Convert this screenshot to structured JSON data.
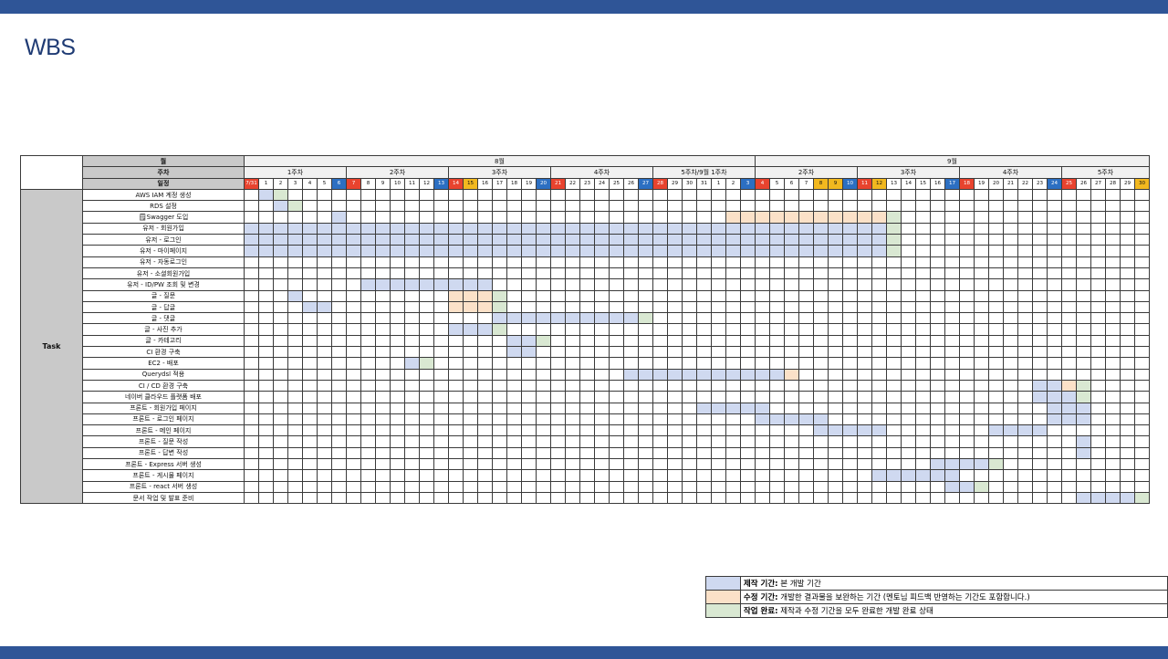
{
  "title": "WBS",
  "colors": {
    "band": "#2f5597",
    "dev": "#cfd9f0",
    "fix": "#fbe1c8",
    "done": "#d9e8d2",
    "sunday": "#e8432e",
    "saturday": "#2c6fc2",
    "holiday": "#f2b81f",
    "header": "#c9c9c9"
  },
  "header": {
    "month_label": "월",
    "week_label": "주차",
    "day_label": "일정",
    "task_label": "Task"
  },
  "months": [
    {
      "label": "8월",
      "span": 35
    },
    {
      "label": "9월",
      "span": 27
    }
  ],
  "weeks": [
    {
      "label": "1주차",
      "span": 7
    },
    {
      "label": "2주차",
      "span": 7
    },
    {
      "label": "3주차",
      "span": 7
    },
    {
      "label": "4주차",
      "span": 7
    },
    {
      "label": "5주차/9월 1주차",
      "span": 7
    },
    {
      "label": "2주차",
      "span": 7
    },
    {
      "label": "3주차",
      "span": 7
    },
    {
      "label": "4주차",
      "span": 7
    },
    {
      "label": "5주차",
      "span": 6
    }
  ],
  "days": [
    "7/31",
    "1",
    "2",
    "3",
    "4",
    "5",
    "6",
    "7",
    "8",
    "9",
    "10",
    "11",
    "12",
    "13",
    "14",
    "15",
    "16",
    "17",
    "18",
    "19",
    "20",
    "21",
    "22",
    "23",
    "24",
    "25",
    "26",
    "27",
    "28",
    "29",
    "30",
    "31",
    "1",
    "2",
    "3",
    "4",
    "5",
    "6",
    "7",
    "8",
    "9",
    "10",
    "11",
    "12",
    "13",
    "14",
    "15",
    "16",
    "17",
    "18",
    "19",
    "20",
    "21",
    "22",
    "23",
    "24",
    "25",
    "26",
    "27",
    "28",
    "29",
    "30"
  ],
  "day_types": {
    "sun": [
      0,
      7,
      14,
      21,
      28,
      35,
      42,
      49,
      56
    ],
    "sat": [
      6,
      13,
      20,
      27,
      34,
      41,
      48,
      55
    ],
    "hol": [
      15,
      39,
      40,
      43,
      61
    ]
  },
  "tasks": [
    {
      "name": "AWS IAM 계정 생성",
      "bars": [
        [
          1,
          1,
          1
        ],
        [
          2,
          2,
          3
        ]
      ]
    },
    {
      "name": "RDS 설정",
      "bars": [
        [
          2,
          2,
          1
        ],
        [
          3,
          3,
          3
        ]
      ]
    },
    {
      "name": "🗒Swagger 도입",
      "bars": [
        [
          6,
          6,
          1
        ],
        [
          33,
          43,
          2
        ],
        [
          44,
          44,
          3
        ]
      ]
    },
    {
      "name": "유저 - 회원가입",
      "bars": [
        [
          0,
          43,
          1
        ],
        [
          44,
          44,
          3
        ]
      ]
    },
    {
      "name": "유저 - 로그인",
      "bars": [
        [
          0,
          43,
          1
        ],
        [
          44,
          44,
          3
        ]
      ]
    },
    {
      "name": "유저 - 마이페이지",
      "bars": [
        [
          0,
          43,
          1
        ],
        [
          44,
          44,
          3
        ]
      ]
    },
    {
      "name": "유저 - 자동로그인",
      "bars": []
    },
    {
      "name": "유저 - 소셜회원가입",
      "bars": []
    },
    {
      "name": "유저 - ID/PW 조회 및 변경",
      "bars": [
        [
          8,
          16,
          1
        ]
      ]
    },
    {
      "name": "글 - 질문",
      "bars": [
        [
          3,
          3,
          1
        ],
        [
          14,
          16,
          2
        ],
        [
          17,
          17,
          3
        ]
      ]
    },
    {
      "name": "글 - 답글",
      "bars": [
        [
          4,
          5,
          1
        ],
        [
          14,
          16,
          2
        ],
        [
          17,
          17,
          3
        ]
      ]
    },
    {
      "name": "글 - 댓글",
      "bars": [
        [
          17,
          26,
          1
        ],
        [
          27,
          27,
          3
        ]
      ]
    },
    {
      "name": "글 - 사진 추가",
      "bars": [
        [
          14,
          16,
          1
        ],
        [
          17,
          17,
          3
        ]
      ]
    },
    {
      "name": "글 - 카테고리",
      "bars": [
        [
          18,
          19,
          1
        ],
        [
          20,
          20,
          3
        ]
      ]
    },
    {
      "name": "CI 환경 구축",
      "bars": [
        [
          18,
          19,
          1
        ]
      ]
    },
    {
      "name": "EC2 - 배포",
      "bars": [
        [
          11,
          11,
          1
        ],
        [
          12,
          12,
          3
        ]
      ]
    },
    {
      "name": "Querydsl 적용",
      "bars": [
        [
          26,
          36,
          1
        ],
        [
          37,
          37,
          2
        ]
      ]
    },
    {
      "name": "CI / CD 환경 구축",
      "bars": [
        [
          54,
          55,
          1
        ],
        [
          56,
          56,
          2
        ],
        [
          57,
          57,
          3
        ]
      ]
    },
    {
      "name": "네이버 클라우드 플랫폼 배포",
      "bars": [
        [
          54,
          55,
          1
        ],
        [
          56,
          56,
          1
        ],
        [
          57,
          57,
          3
        ]
      ]
    },
    {
      "name": "프론트 - 회원가입 페이지",
      "bars": [
        [
          31,
          35,
          1
        ],
        [
          55,
          57,
          1
        ]
      ]
    },
    {
      "name": "프론트 - 로그인 페이지",
      "bars": [
        [
          35,
          39,
          1
        ],
        [
          55,
          57,
          1
        ]
      ]
    },
    {
      "name": "프론트 - 메인 페이지",
      "bars": [
        [
          39,
          43,
          1
        ],
        [
          51,
          54,
          1
        ]
      ]
    },
    {
      "name": "프론트 - 질문 작성",
      "bars": [
        [
          57,
          57,
          1
        ]
      ]
    },
    {
      "name": "프론트 - 답변 작성",
      "bars": [
        [
          57,
          57,
          1
        ]
      ]
    },
    {
      "name": "프론트 - Express 서버 생성",
      "bars": [
        [
          47,
          50,
          1
        ],
        [
          51,
          51,
          3
        ]
      ]
    },
    {
      "name": "프론트 - 게시물 페이지",
      "bars": [
        [
          43,
          48,
          1
        ]
      ]
    },
    {
      "name": "프론트 - react 서버 생성",
      "bars": [
        [
          48,
          49,
          1
        ],
        [
          50,
          50,
          3
        ]
      ]
    },
    {
      "name": "문서 작업 및 발표 준비",
      "bars": [
        [
          57,
          60,
          1
        ],
        [
          61,
          61,
          3
        ]
      ]
    }
  ],
  "legend": [
    {
      "key": "dev",
      "title": "제작 기간:",
      "desc": " 본 개발 기간"
    },
    {
      "key": "fix",
      "title": "수정 기간:",
      "desc": " 개발한 결과물을 보완하는 기간 (멘토님 피드백 반영하는 기간도 포함합니다.)"
    },
    {
      "key": "done",
      "title": "작업 완료:",
      "desc": " 제작과 수정 기간을 모두 완료한 개발 완료 상태"
    }
  ]
}
